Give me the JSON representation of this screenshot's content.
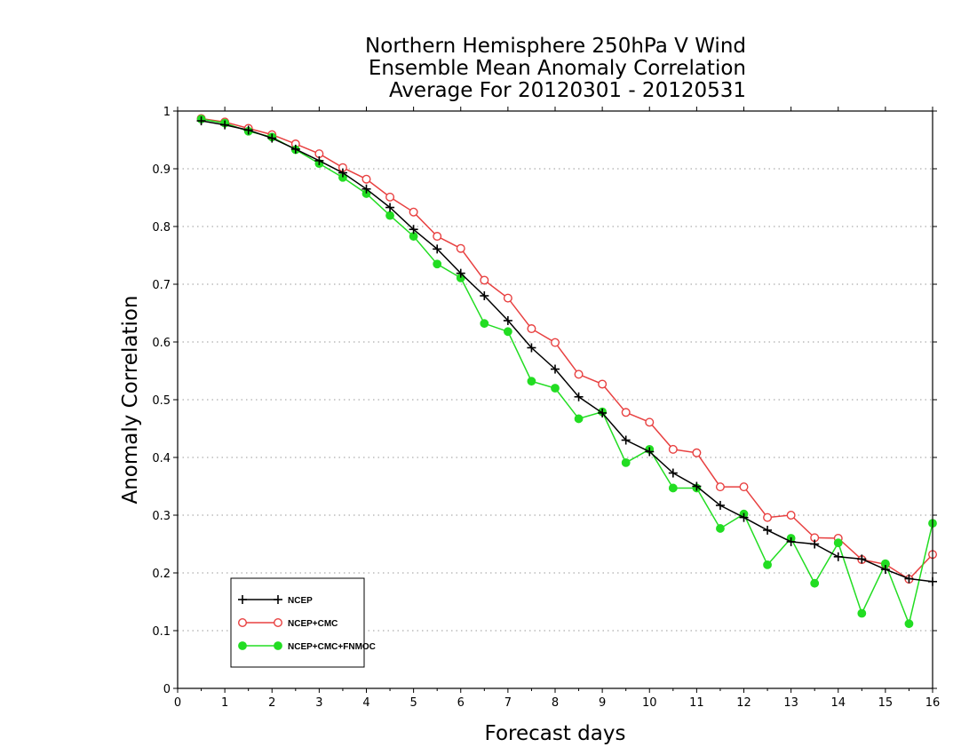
{
  "chart_data": {
    "type": "line",
    "title": [
      "Northern Hemisphere 250hPa V Wind",
      "Ensemble Mean Anomaly Correlation",
      "Average For 20120301 - 20120531"
    ],
    "xlabel": "Forecast days",
    "ylabel": "Anomaly Correlation",
    "xlim": [
      0,
      16
    ],
    "ylim": [
      0,
      1
    ],
    "xticks": [
      "0",
      "1",
      "2",
      "3",
      "4",
      "5",
      "6",
      "7",
      "8",
      "9",
      "10",
      "11",
      "12",
      "13",
      "14",
      "15",
      "16"
    ],
    "yticks": [
      "0",
      "0.1",
      "0.2",
      "0.3",
      "0.4",
      "0.5",
      "0.6",
      "0.7",
      "0.8",
      "0.9",
      "1"
    ],
    "grid": "horizontal dotted",
    "legend_position": "bottom-left",
    "x": [
      0.5,
      1,
      1.5,
      2,
      2.5,
      3,
      3.5,
      4,
      4.5,
      5,
      5.5,
      6,
      6.5,
      7,
      7.5,
      8,
      8.5,
      9,
      9.5,
      10,
      10.5,
      11,
      11.5,
      12,
      12.5,
      13,
      13.5,
      14,
      14.5,
      15,
      15.5,
      16
    ],
    "series": [
      {
        "name": "NCEP",
        "color": "#000000",
        "marker": "plus",
        "values": [
          0.983,
          0.976,
          0.967,
          0.953,
          0.934,
          0.914,
          0.893,
          0.865,
          0.833,
          0.795,
          0.761,
          0.719,
          0.68,
          0.637,
          0.59,
          0.553,
          0.505,
          0.477,
          0.43,
          0.41,
          0.373,
          0.35,
          0.317,
          0.296,
          0.274,
          0.254,
          0.25,
          0.228,
          0.224,
          0.206,
          0.19,
          0.185
        ]
      },
      {
        "name": "NCEP+CMC",
        "color": "#e84040",
        "marker": "open-circle",
        "values": [
          0.987,
          0.981,
          0.97,
          0.959,
          0.943,
          0.926,
          0.902,
          0.882,
          0.851,
          0.825,
          0.783,
          0.762,
          0.707,
          0.676,
          0.623,
          0.599,
          0.544,
          0.527,
          0.478,
          0.461,
          0.414,
          0.408,
          0.349,
          0.349,
          0.296,
          0.3,
          0.261,
          0.26,
          0.223,
          0.215,
          0.189,
          0.232
        ]
      },
      {
        "name": "NCEP+CMC+FNMOC",
        "color": "#22dd22",
        "marker": "filled-circle",
        "values": [
          0.986,
          0.979,
          0.965,
          0.955,
          0.933,
          0.909,
          0.885,
          0.857,
          0.819,
          0.783,
          0.735,
          0.711,
          0.632,
          0.618,
          0.532,
          0.52,
          0.467,
          0.479,
          0.391,
          0.414,
          0.347,
          0.347,
          0.277,
          0.302,
          0.214,
          0.26,
          0.182,
          0.252,
          0.13,
          0.216,
          0.112,
          0.286
        ]
      }
    ]
  }
}
